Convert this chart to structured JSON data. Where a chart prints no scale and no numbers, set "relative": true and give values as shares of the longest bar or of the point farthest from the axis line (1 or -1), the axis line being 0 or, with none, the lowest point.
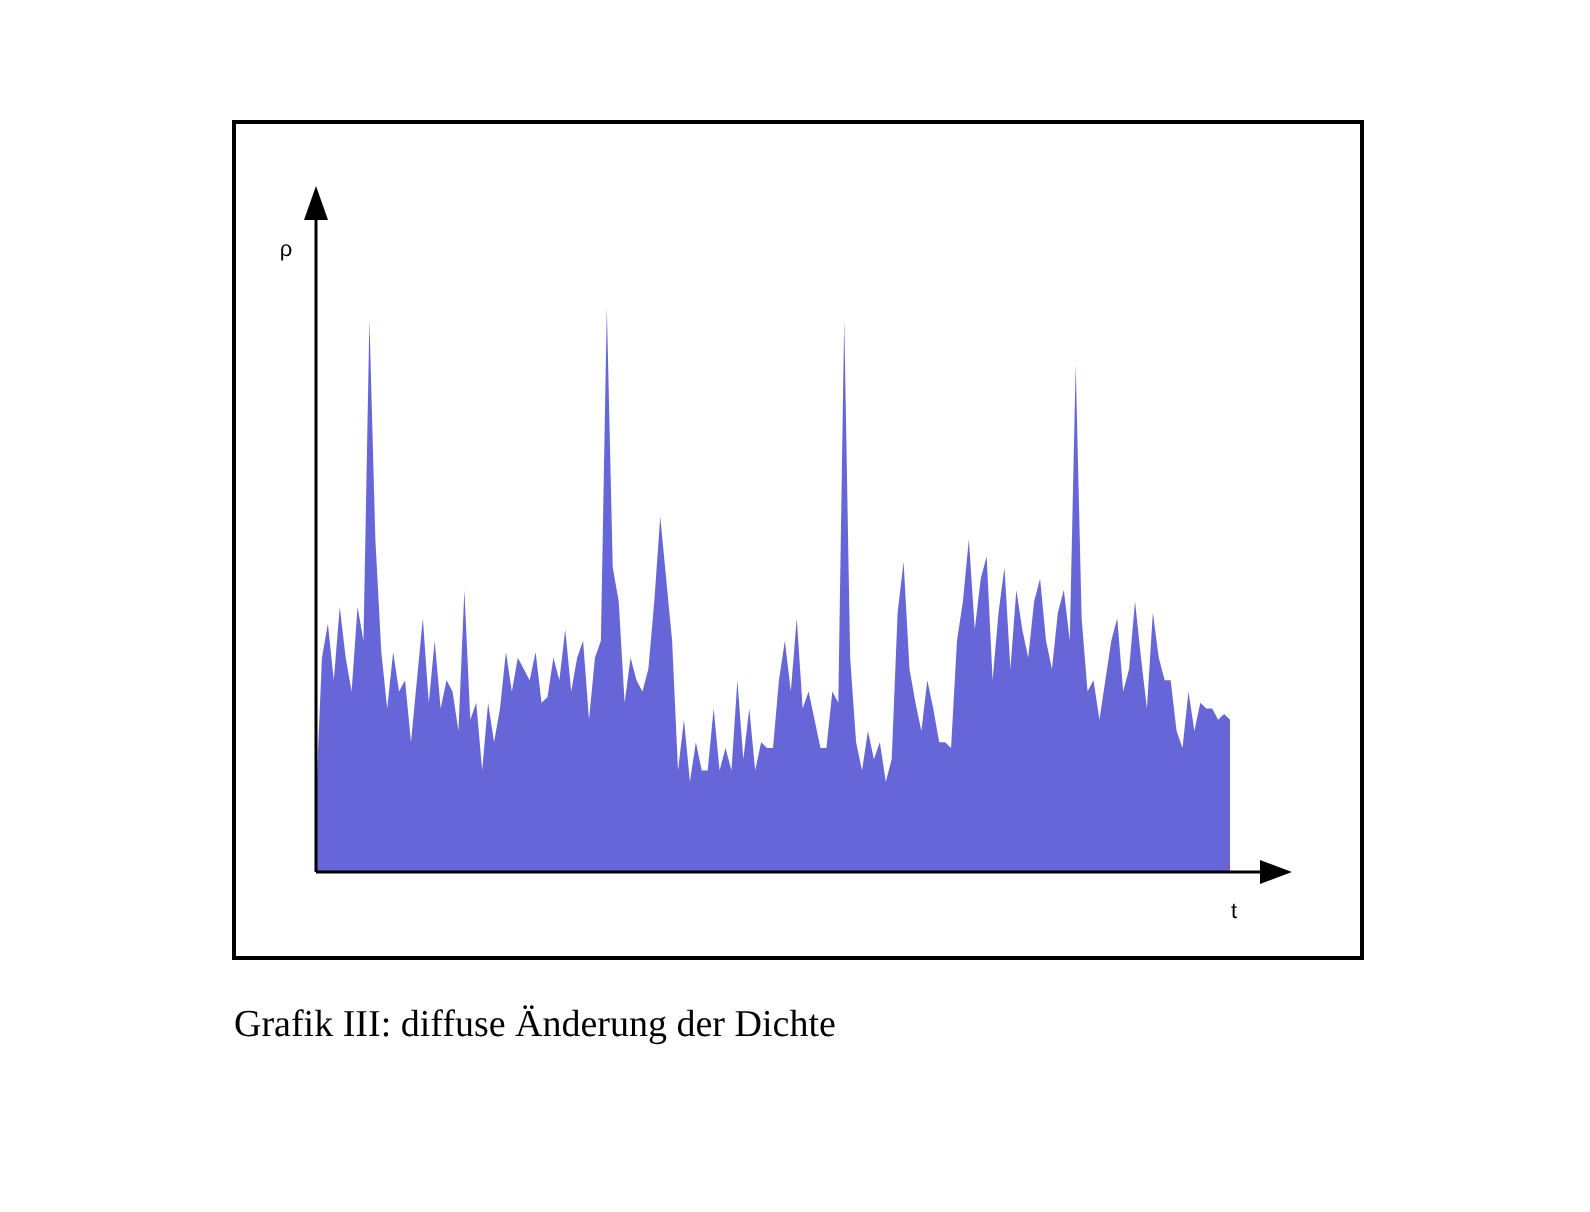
{
  "chart_data": {
    "type": "area",
    "relative": true,
    "xlabel": "t",
    "ylabel": "ρ",
    "annotations": [
      "Grafik III: diffuse Änderung der Dichte"
    ],
    "categories": [
      null,
      null,
      null,
      null,
      null,
      null,
      null,
      null,
      null,
      null,
      null,
      null,
      null,
      null,
      null,
      null,
      null,
      null,
      null,
      null,
      null,
      null,
      null,
      null,
      null,
      null,
      null,
      null,
      null,
      null,
      null,
      null,
      null,
      null,
      null,
      null,
      null,
      null,
      null,
      null,
      null,
      null,
      null,
      null,
      null,
      null,
      null,
      null,
      null,
      null,
      null,
      null,
      null,
      null,
      null,
      null,
      null,
      null,
      null,
      null,
      null,
      null,
      null,
      null,
      null,
      null,
      null,
      null,
      null,
      null,
      null,
      null,
      null,
      null,
      null,
      null,
      null,
      null,
      null,
      null,
      null,
      null,
      null,
      null,
      null,
      null,
      null,
      null,
      null,
      null,
      null,
      null,
      null,
      null,
      null,
      null,
      null,
      null,
      null,
      null,
      null,
      null,
      null,
      null,
      null,
      null,
      null,
      null,
      null,
      null,
      null,
      null,
      null,
      null,
      null,
      null,
      null,
      null,
      null,
      null,
      null,
      null,
      null,
      null,
      null,
      null,
      null,
      null,
      null,
      null,
      null,
      null,
      null,
      null,
      null,
      null,
      null,
      null,
      null,
      null,
      null,
      null,
      null,
      null,
      null,
      null,
      null,
      null,
      null,
      null,
      null,
      null,
      null,
      null,
      null
    ],
    "series": [
      {
        "color": "#3333cc",
        "values": [
          0.13,
          0.38,
          0.44,
          0.34,
          0.47,
          0.38,
          0.32,
          0.47,
          0.41,
          0.98,
          0.59,
          0.39,
          0.29,
          0.39,
          0.32,
          0.34,
          0.23,
          0.34,
          0.45,
          0.3,
          0.41,
          0.29,
          0.34,
          0.32,
          0.25,
          0.5,
          0.27,
          0.3,
          0.18,
          0.3,
          0.23,
          0.29,
          0.39,
          0.32,
          0.38,
          0.36,
          0.34,
          0.39,
          0.3,
          0.31,
          0.38,
          0.34,
          0.43,
          0.32,
          0.38,
          0.41,
          0.27,
          0.38,
          0.41,
          1,
          0.54,
          0.48,
          0.3,
          0.38,
          0.34,
          0.32,
          0.36,
          0.48,
          0.63,
          0.52,
          0.41,
          0.18,
          0.27,
          0.16,
          0.23,
          0.18,
          0.18,
          0.29,
          0.18,
          0.22,
          0.18,
          0.34,
          0.2,
          0.29,
          0.18,
          0.23,
          0.22,
          0.22,
          0.34,
          0.41,
          0.32,
          0.45,
          0.29,
          0.32,
          0.27,
          0.22,
          0.22,
          0.32,
          0.3,
          0.98,
          0.38,
          0.23,
          0.18,
          0.25,
          0.2,
          0.23,
          0.16,
          0.2,
          0.46,
          0.55,
          0.36,
          0.3,
          0.25,
          0.34,
          0.29,
          0.23,
          0.23,
          0.22,
          0.41,
          0.48,
          0.59,
          0.43,
          0.52,
          0.56,
          0.34,
          0.46,
          0.54,
          0.36,
          0.5,
          0.43,
          0.38,
          0.48,
          0.52,
          0.41,
          0.36,
          0.46,
          0.5,
          0.41,
          0.9,
          0.45,
          0.32,
          0.34,
          0.27,
          0.34,
          0.41,
          0.45,
          0.32,
          0.36,
          0.48,
          0.38,
          0.29,
          0.46,
          0.38,
          0.34,
          0.34,
          0.25,
          0.22,
          0.32,
          0.25,
          0.3,
          0.29,
          0.29,
          0.27,
          0.28,
          0.27
        ]
      }
    ]
  }
}
